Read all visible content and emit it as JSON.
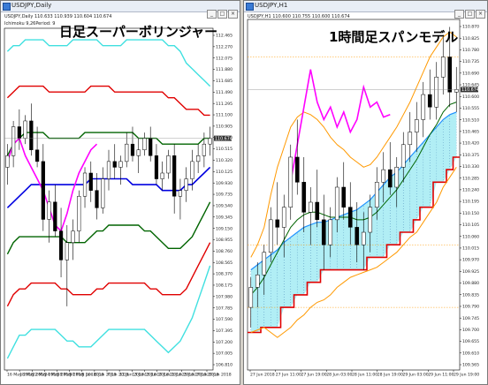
{
  "left_window": {
    "title": "USDJPY,Daily",
    "info": "USDJPY,Daily  110.633 110.939 110.604 110.674",
    "subinfo": "Ichimoku 9,26Period: 9",
    "heading": "日足スーパーボリンジャー",
    "price_tag": "110.674"
  },
  "right_window": {
    "title": "USDJPY,H1",
    "info": "USDJPY,H1  110.600 110.755 110.600 110.674",
    "heading": "1時間足スパンモデル",
    "price_tag": "110.674"
  },
  "window_buttons": [
    "_",
    "□",
    "×"
  ],
  "colors": {
    "cyan": "#40e0e0",
    "red": "#e00000",
    "green": "#006400",
    "blue": "#0000e0",
    "magenta": "#ff00ff",
    "orange": "#ff9900",
    "span_fill": "#a8ecf4",
    "candle": "#000000"
  },
  "chart_data": [
    {
      "type": "candlestick",
      "name": "left",
      "ylim": [
        106.7,
        112.6
      ],
      "y_ticks": [
        "112.465",
        "112.270",
        "112.075",
        "111.880",
        "111.685",
        "111.490",
        "111.295",
        "111.100",
        "110.905",
        "110.710",
        "110.515",
        "110.320",
        "110.125",
        "109.930",
        "109.735",
        "109.540",
        "109.345",
        "109.150",
        "108.955",
        "108.760",
        "108.565",
        "108.370",
        "108.175",
        "107.980",
        "107.785",
        "107.590",
        "107.395",
        "107.200",
        "107.005",
        "106.810"
      ],
      "x_ticks": [
        "16 May 2018",
        "18 May 2018",
        "22 May 2018",
        "24 May 2018",
        "28 May 2018",
        "30 May 2018",
        "1 Jun 2018",
        "5 Jun 2018",
        "7 Jun 2018",
        "11 Jun 2018",
        "13 Jun 2018",
        "15 Jun 2018",
        "19 Jun 2018",
        "21 Jun 2018",
        "25 Jun 2018",
        "27 Jun 2018",
        "29 Jun 2018"
      ],
      "candles": [
        [
          110.2,
          110.6,
          109.9,
          110.4
        ],
        [
          110.4,
          111.0,
          110.2,
          110.9
        ],
        [
          110.9,
          111.2,
          110.5,
          110.7
        ],
        [
          110.7,
          111.1,
          110.6,
          111.0
        ],
        [
          111.0,
          111.3,
          110.4,
          110.5
        ],
        [
          110.5,
          110.9,
          110.2,
          110.3
        ],
        [
          110.3,
          110.6,
          109.1,
          109.3
        ],
        [
          109.3,
          109.8,
          108.9,
          109.6
        ],
        [
          109.6,
          109.9,
          109.0,
          109.1
        ],
        [
          109.1,
          109.5,
          108.3,
          108.6
        ],
        [
          108.6,
          109.2,
          107.8,
          108.9
        ],
        [
          108.9,
          109.3,
          108.6,
          109.1
        ],
        [
          109.1,
          109.8,
          108.9,
          109.7
        ],
        [
          109.7,
          110.2,
          109.5,
          110.1
        ],
        [
          110.1,
          110.3,
          109.6,
          109.8
        ],
        [
          109.8,
          110.1,
          109.3,
          109.5
        ],
        [
          109.5,
          110.2,
          109.4,
          110.0
        ],
        [
          110.0,
          110.5,
          109.8,
          110.3
        ],
        [
          110.3,
          110.6,
          110.0,
          110.2
        ],
        [
          110.2,
          110.4,
          109.9,
          110.3
        ],
        [
          110.3,
          110.8,
          110.2,
          110.6
        ],
        [
          110.6,
          110.9,
          110.3,
          110.4
        ],
        [
          110.4,
          110.7,
          110.1,
          110.5
        ],
        [
          110.5,
          110.8,
          110.4,
          110.7
        ],
        [
          110.7,
          110.9,
          110.3,
          110.4
        ],
        [
          110.4,
          110.6,
          109.9,
          110.0
        ],
        [
          110.0,
          110.3,
          109.8,
          110.1
        ],
        [
          110.1,
          110.5,
          110.0,
          110.4
        ],
        [
          110.4,
          110.6,
          109.4,
          109.7
        ],
        [
          109.7,
          110.0,
          109.3,
          109.8
        ],
        [
          109.8,
          110.2,
          109.6,
          110.0
        ],
        [
          110.0,
          110.5,
          109.8,
          110.3
        ],
        [
          110.3,
          110.6,
          110.1,
          110.4
        ],
        [
          110.4,
          110.8,
          110.2,
          110.6
        ],
        [
          110.6,
          110.9,
          110.4,
          110.7
        ]
      ],
      "lines": {
        "upper3_cyan": [
          112.2,
          112.3,
          112.3,
          112.4,
          112.4,
          112.4,
          112.4,
          112.3,
          112.3,
          112.3,
          112.3,
          112.4,
          112.4,
          112.4,
          112.4,
          112.4,
          112.3,
          112.3,
          112.3,
          112.3,
          112.4,
          112.4,
          112.4,
          112.4,
          112.4,
          112.4,
          112.4,
          112.3,
          112.3,
          112.2,
          112.0,
          111.9,
          111.8,
          111.7,
          111.6
        ],
        "upper2_red": [
          111.4,
          111.5,
          111.6,
          111.6,
          111.6,
          111.6,
          111.6,
          111.5,
          111.5,
          111.5,
          111.5,
          111.5,
          111.5,
          111.5,
          111.6,
          111.6,
          111.6,
          111.6,
          111.5,
          111.5,
          111.5,
          111.5,
          111.5,
          111.5,
          111.5,
          111.5,
          111.5,
          111.4,
          111.4,
          111.3,
          111.2,
          111.2,
          111.2,
          111.1,
          111.1
        ],
        "upper1_green": [
          110.4,
          110.6,
          110.7,
          110.8,
          110.8,
          110.8,
          110.8,
          110.7,
          110.7,
          110.7,
          110.7,
          110.7,
          110.7,
          110.8,
          110.8,
          110.8,
          110.8,
          110.8,
          110.8,
          110.8,
          110.8,
          110.8,
          110.7,
          110.7,
          110.7,
          110.7,
          110.6,
          110.6,
          110.6,
          110.6,
          110.6,
          110.6,
          110.6,
          110.7,
          110.7
        ],
        "mid_blue": [
          109.5,
          109.6,
          109.7,
          109.8,
          109.9,
          109.9,
          109.9,
          109.9,
          109.9,
          109.9,
          109.9,
          109.9,
          109.9,
          109.9,
          110.0,
          110.0,
          110.0,
          110.0,
          110.0,
          110.0,
          110.0,
          109.9,
          109.9,
          109.9,
          109.9,
          109.9,
          109.8,
          109.8,
          109.8,
          109.8,
          109.9,
          109.9,
          110.0,
          110.1,
          110.2
        ],
        "lower1_green": [
          108.7,
          108.9,
          109.0,
          109.0,
          109.0,
          109.0,
          109.0,
          109.0,
          109.0,
          109.0,
          108.9,
          108.9,
          108.9,
          108.9,
          109.0,
          109.1,
          109.1,
          109.2,
          109.2,
          109.2,
          109.2,
          109.2,
          109.2,
          109.1,
          109.1,
          109.0,
          108.9,
          108.8,
          108.8,
          108.8,
          108.9,
          109.0,
          109.2,
          109.4,
          109.6
        ],
        "lower2_red": [
          107.8,
          108.0,
          108.1,
          108.1,
          108.2,
          108.2,
          108.2,
          108.2,
          108.2,
          108.1,
          108.1,
          108.0,
          108.0,
          108.0,
          108.0,
          108.1,
          108.1,
          108.2,
          108.2,
          108.2,
          108.2,
          108.2,
          108.2,
          108.2,
          108.1,
          108.1,
          108.0,
          108.0,
          108.0,
          108.0,
          108.1,
          108.3,
          108.5,
          108.7,
          108.9
        ],
        "lower3_cyan": [
          106.9,
          107.1,
          107.3,
          107.3,
          107.4,
          107.4,
          107.4,
          107.4,
          107.4,
          107.3,
          107.2,
          107.2,
          107.1,
          107.1,
          107.1,
          107.2,
          107.3,
          107.4,
          107.4,
          107.4,
          107.4,
          107.4,
          107.4,
          107.4,
          107.3,
          107.2,
          107.1,
          107.0,
          107.1,
          107.2,
          107.4,
          107.6,
          107.9,
          108.2,
          108.5
        ],
        "lagging_magenta": [
          110.3,
          110.6,
          110.7,
          110.4,
          110.2,
          110.0,
          109.8,
          109.5,
          109.2,
          109.1,
          109.4,
          109.8,
          110.1,
          110.3,
          110.5,
          110.6,
          null,
          null,
          null,
          null,
          null,
          null,
          null,
          null,
          null,
          null,
          null,
          null,
          null,
          null,
          null,
          null,
          null,
          null,
          null
        ]
      }
    },
    {
      "type": "candlestick",
      "name": "right",
      "ylim": [
        109.55,
        110.95
      ],
      "y_ticks": [
        "110.870",
        "110.825",
        "110.780",
        "110.735",
        "110.690",
        "110.645",
        "110.600",
        "110.555",
        "110.510",
        "110.465",
        "110.420",
        "110.375",
        "110.330",
        "110.285",
        "110.240",
        "110.195",
        "110.150",
        "110.105",
        "110.060",
        "110.015",
        "109.970",
        "109.925",
        "109.880",
        "109.835",
        "109.790",
        "109.745",
        "109.700",
        "109.655",
        "109.610",
        "109.565"
      ],
      "x_ticks": [
        "27 Jun 2018",
        "27 Jun 11:00",
        "27 Jun 19:00",
        "28 Jun 03:00",
        "28 Jun 11:00",
        "28 Jun 19:00",
        "29 Jun 03:00",
        "29 Jun 11:00",
        "29 Jun 19:00"
      ],
      "candles": [
        [
          109.8,
          109.92,
          109.72,
          109.88
        ],
        [
          109.88,
          109.98,
          109.8,
          109.93
        ],
        [
          109.93,
          110.05,
          109.85,
          110.02
        ],
        [
          110.02,
          110.2,
          109.98,
          110.15
        ],
        [
          110.15,
          110.3,
          110.05,
          110.12
        ],
        [
          110.12,
          110.25,
          110.0,
          110.2
        ],
        [
          110.2,
          110.45,
          110.15,
          110.4
        ],
        [
          110.4,
          110.55,
          110.25,
          110.3
        ],
        [
          110.3,
          110.4,
          110.1,
          110.18
        ],
        [
          110.18,
          110.28,
          110.05,
          110.22
        ],
        [
          110.22,
          110.35,
          110.12,
          110.15
        ],
        [
          110.15,
          110.25,
          109.95,
          110.05
        ],
        [
          110.05,
          110.2,
          110.0,
          110.15
        ],
        [
          110.15,
          110.32,
          110.1,
          110.28
        ],
        [
          110.28,
          110.38,
          110.15,
          110.2
        ],
        [
          110.2,
          110.3,
          110.05,
          110.12
        ],
        [
          110.12,
          110.22,
          109.98,
          110.05
        ],
        [
          110.05,
          110.18,
          109.95,
          110.1
        ],
        [
          110.1,
          110.25,
          110.02,
          110.2
        ],
        [
          110.2,
          110.36,
          110.15,
          110.3
        ],
        [
          110.3,
          110.42,
          110.22,
          110.35
        ],
        [
          110.35,
          110.46,
          110.25,
          110.28
        ],
        [
          110.28,
          110.4,
          110.2,
          110.36
        ],
        [
          110.36,
          110.5,
          110.3,
          110.45
        ],
        [
          110.45,
          110.58,
          110.38,
          110.5
        ],
        [
          110.5,
          110.62,
          110.42,
          110.55
        ],
        [
          110.55,
          110.7,
          110.48,
          110.65
        ],
        [
          110.65,
          110.75,
          110.55,
          110.6
        ],
        [
          110.6,
          110.78,
          110.55,
          110.72
        ],
        [
          110.72,
          110.88,
          110.65,
          110.8
        ],
        [
          110.8,
          110.92,
          110.6,
          110.66
        ],
        [
          110.66,
          110.76,
          110.58,
          110.67
        ]
      ],
      "lines": {
        "span_a": [
          109.95,
          109.97,
          109.99,
          110.01,
          110.03,
          110.06,
          110.08,
          110.1,
          110.12,
          110.13,
          110.14,
          110.14,
          110.15,
          110.16,
          110.17,
          110.18,
          110.19,
          110.21,
          110.23,
          110.26,
          110.29,
          110.32,
          110.34,
          110.37,
          110.4,
          110.43,
          110.46,
          110.49,
          110.52,
          110.55,
          110.57,
          110.58
        ],
        "span_b": [
          109.7,
          109.7,
          109.72,
          109.72,
          109.72,
          109.8,
          109.8,
          109.85,
          109.85,
          109.9,
          109.9,
          109.95,
          109.95,
          109.95,
          109.95,
          109.95,
          109.95,
          109.95,
          110.0,
          110.0,
          110.0,
          110.05,
          110.05,
          110.1,
          110.1,
          110.15,
          110.2,
          110.2,
          110.3,
          110.3,
          110.35,
          110.4
        ],
        "bb_upper": [
          110.0,
          110.05,
          110.12,
          110.25,
          110.36,
          110.44,
          110.52,
          110.56,
          110.58,
          110.57,
          110.55,
          110.52,
          110.48,
          110.45,
          110.43,
          110.4,
          110.38,
          110.36,
          110.37,
          110.4,
          110.44,
          110.48,
          110.52,
          110.57,
          110.62,
          110.68,
          110.74,
          110.8,
          110.84,
          110.88,
          110.9,
          110.88
        ],
        "bb_mid": [
          109.85,
          109.88,
          109.92,
          109.97,
          110.02,
          110.07,
          110.12,
          110.15,
          110.17,
          110.18,
          110.18,
          110.17,
          110.16,
          110.16,
          110.16,
          110.16,
          110.15,
          110.15,
          110.16,
          110.18,
          110.21,
          110.24,
          110.27,
          110.31,
          110.35,
          110.39,
          110.44,
          110.49,
          110.53,
          110.58,
          110.61,
          110.62
        ],
        "bb_lower": [
          109.7,
          109.71,
          109.72,
          109.7,
          109.68,
          109.7,
          109.72,
          109.75,
          109.77,
          109.8,
          109.82,
          109.83,
          109.85,
          109.88,
          109.9,
          109.92,
          109.93,
          109.94,
          109.95,
          109.96,
          109.98,
          110.0,
          110.02,
          110.05,
          110.08,
          110.1,
          110.14,
          110.18,
          110.22,
          110.28,
          110.32,
          110.36
        ],
        "lagging_magenta": [
          null,
          null,
          null,
          null,
          null,
          null,
          110.3,
          110.45,
          110.6,
          110.75,
          110.62,
          110.55,
          110.6,
          110.52,
          110.58,
          110.5,
          110.55,
          110.68,
          110.6,
          110.62,
          110.56,
          110.57,
          null,
          null,
          null,
          null,
          null,
          null,
          null,
          null,
          null,
          null
        ]
      },
      "hlines": [
        110.8,
        110.05,
        109.8
      ]
    }
  ]
}
